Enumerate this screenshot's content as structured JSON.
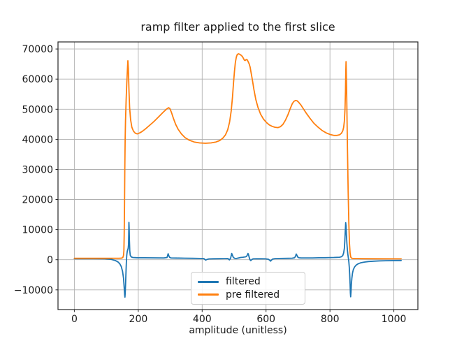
{
  "chart_data": {
    "type": "line",
    "title": "ramp filter applied to the first slice",
    "xlabel": "amplitude (unitless)",
    "ylabel": "",
    "xlim": [
      -51.2,
      1075.2
    ],
    "ylim": [
      -16540,
      72340
    ],
    "xticks": [
      0,
      200,
      400,
      600,
      800,
      1000
    ],
    "yticks": [
      -10000,
      0,
      10000,
      20000,
      30000,
      40000,
      50000,
      60000,
      70000
    ],
    "grid": true,
    "legend_position": "lower center",
    "series": [
      {
        "name": "filtered",
        "color": "#1f77b4",
        "points": [
          [
            0,
            350
          ],
          [
            60,
            350
          ],
          [
            95,
            330
          ],
          [
            115,
            150
          ],
          [
            128,
            -250
          ],
          [
            136,
            -700
          ],
          [
            142,
            -1300
          ],
          [
            147,
            -2300
          ],
          [
            151,
            -3900
          ],
          [
            154,
            -6200
          ],
          [
            156,
            -9200
          ],
          [
            157.5,
            -11700
          ],
          [
            158.3,
            -12400
          ],
          [
            159.2,
            -11000
          ],
          [
            160.5,
            -7500
          ],
          [
            161.8,
            -3500
          ],
          [
            163,
            -500
          ],
          [
            164,
            1500
          ],
          [
            165.5,
            2800
          ],
          [
            167,
            3400
          ],
          [
            168.5,
            3800
          ],
          [
            169.5,
            5000
          ],
          [
            170.2,
            8500
          ],
          [
            170.8,
            12400
          ],
          [
            171.5,
            10500
          ],
          [
            172.3,
            6500
          ],
          [
            173.5,
            3000
          ],
          [
            175,
            1500
          ],
          [
            178,
            950
          ],
          [
            183,
            750
          ],
          [
            195,
            680
          ],
          [
            220,
            650
          ],
          [
            250,
            630
          ],
          [
            280,
            620
          ],
          [
            290,
            750
          ],
          [
            293.5,
            2000
          ],
          [
            295.5,
            1400
          ],
          [
            298,
            800
          ],
          [
            303,
            600
          ],
          [
            320,
            560
          ],
          [
            345,
            520
          ],
          [
            370,
            480
          ],
          [
            395,
            430
          ],
          [
            406,
            350
          ],
          [
            411,
            -100
          ],
          [
            415,
            100
          ],
          [
            421,
            280
          ],
          [
            435,
            330
          ],
          [
            455,
            360
          ],
          [
            470,
            380
          ],
          [
            481,
            390
          ],
          [
            485,
            -50
          ],
          [
            489,
            500
          ],
          [
            492.5,
            2100
          ],
          [
            494.5,
            1600
          ],
          [
            497,
            900
          ],
          [
            501,
            500
          ],
          [
            506,
            400
          ],
          [
            512,
            550
          ],
          [
            520,
            750
          ],
          [
            528,
            850
          ],
          [
            535,
            950
          ],
          [
            539,
            1100
          ],
          [
            542,
            1700
          ],
          [
            543.5,
            2100
          ],
          [
            545,
            1700
          ],
          [
            547,
            900
          ],
          [
            549.5,
            100
          ],
          [
            551.5,
            -250
          ],
          [
            553.5,
            -150
          ],
          [
            556,
            150
          ],
          [
            560,
            300
          ],
          [
            570,
            330
          ],
          [
            585,
            320
          ],
          [
            598,
            300
          ],
          [
            607,
            200
          ],
          [
            611,
            -100
          ],
          [
            614,
            -450
          ],
          [
            617,
            -100
          ],
          [
            621,
            250
          ],
          [
            628,
            380
          ],
          [
            640,
            420
          ],
          [
            655,
            450
          ],
          [
            670,
            480
          ],
          [
            682,
            520
          ],
          [
            689,
            650
          ],
          [
            692,
            1100
          ],
          [
            694.5,
            1900
          ],
          [
            696.5,
            1500
          ],
          [
            699,
            900
          ],
          [
            703,
            650
          ],
          [
            710,
            600
          ],
          [
            725,
            600
          ],
          [
            745,
            620
          ],
          [
            765,
            650
          ],
          [
            785,
            690
          ],
          [
            800,
            720
          ],
          [
            812,
            750
          ],
          [
            822,
            790
          ],
          [
            830,
            850
          ],
          [
            836,
            1000
          ],
          [
            840,
            1400
          ],
          [
            843,
            2300
          ],
          [
            845,
            3800
          ],
          [
            846.5,
            6000
          ],
          [
            848,
            9500
          ],
          [
            849.3,
            12300
          ],
          [
            850.3,
            11200
          ],
          [
            851.5,
            8500
          ],
          [
            853,
            5500
          ],
          [
            854.5,
            3300
          ],
          [
            856,
            1800
          ],
          [
            857.5,
            600
          ],
          [
            859,
            -700
          ],
          [
            860.5,
            -2400
          ],
          [
            861.8,
            -4800
          ],
          [
            863,
            -8000
          ],
          [
            864,
            -11000
          ],
          [
            864.8,
            -12300
          ],
          [
            865.8,
            -10800
          ],
          [
            867,
            -8200
          ],
          [
            868.5,
            -6200
          ],
          [
            870.5,
            -4500
          ],
          [
            873,
            -3300
          ],
          [
            877,
            -2400
          ],
          [
            882,
            -1750
          ],
          [
            889,
            -1300
          ],
          [
            897,
            -1000
          ],
          [
            907,
            -780
          ],
          [
            920,
            -600
          ],
          [
            936,
            -480
          ],
          [
            955,
            -390
          ],
          [
            975,
            -330
          ],
          [
            1000,
            -280
          ],
          [
            1023,
            -260
          ]
        ]
      },
      {
        "name": "pre filtered",
        "color": "#ff7f0e",
        "points": [
          [
            0,
            500
          ],
          [
            60,
            500
          ],
          [
            120,
            500
          ],
          [
            140,
            500
          ],
          [
            148,
            550
          ],
          [
            152,
            800
          ],
          [
            154,
            1500
          ],
          [
            155,
            3000
          ],
          [
            156,
            8000
          ],
          [
            157,
            18000
          ],
          [
            158,
            30000
          ],
          [
            159,
            40000
          ],
          [
            160,
            46000
          ],
          [
            162,
            53000
          ],
          [
            164,
            58500
          ],
          [
            166,
            63000
          ],
          [
            167.5,
            66100
          ],
          [
            169,
            63500
          ],
          [
            171,
            56000
          ],
          [
            173,
            50500
          ],
          [
            176,
            46500
          ],
          [
            180,
            44000
          ],
          [
            185,
            42700
          ],
          [
            191,
            42000
          ],
          [
            197,
            41800
          ],
          [
            204,
            42100
          ],
          [
            212,
            42600
          ],
          [
            222,
            43400
          ],
          [
            235,
            44600
          ],
          [
            250,
            46000
          ],
          [
            265,
            47600
          ],
          [
            278,
            49000
          ],
          [
            288,
            50000
          ],
          [
            295,
            50500
          ],
          [
            299,
            50200
          ],
          [
            304,
            48900
          ],
          [
            310,
            47000
          ],
          [
            317,
            45000
          ],
          [
            325,
            43300
          ],
          [
            335,
            41800
          ],
          [
            347,
            40500
          ],
          [
            360,
            39700
          ],
          [
            375,
            39100
          ],
          [
            392,
            38800
          ],
          [
            410,
            38700
          ],
          [
            428,
            38800
          ],
          [
            443,
            39100
          ],
          [
            455,
            39600
          ],
          [
            465,
            40400
          ],
          [
            473,
            41500
          ],
          [
            480,
            43200
          ],
          [
            486,
            45800
          ],
          [
            491,
            49500
          ],
          [
            495,
            54000
          ],
          [
            498,
            58500
          ],
          [
            501,
            62500
          ],
          [
            504,
            65500
          ],
          [
            507,
            67300
          ],
          [
            510,
            68200
          ],
          [
            514,
            68400
          ],
          [
            518,
            68200
          ],
          [
            522,
            67900
          ],
          [
            526,
            67500
          ],
          [
            529,
            66900
          ],
          [
            532,
            66300
          ],
          [
            535,
            66200
          ],
          [
            538,
            66500
          ],
          [
            541,
            66400
          ],
          [
            544,
            65800
          ],
          [
            547,
            65100
          ],
          [
            550,
            64000
          ],
          [
            553,
            62300
          ],
          [
            557,
            59800
          ],
          [
            562,
            56500
          ],
          [
            568,
            53200
          ],
          [
            575,
            50500
          ],
          [
            583,
            48300
          ],
          [
            592,
            46700
          ],
          [
            601,
            45600
          ],
          [
            610,
            44800
          ],
          [
            619,
            44300
          ],
          [
            628,
            44000
          ],
          [
            637,
            43900
          ],
          [
            645,
            44200
          ],
          [
            653,
            45000
          ],
          [
            661,
            46400
          ],
          [
            669,
            48300
          ],
          [
            676,
            50300
          ],
          [
            682,
            51800
          ],
          [
            687,
            52600
          ],
          [
            692,
            52900
          ],
          [
            697,
            52800
          ],
          [
            702,
            52300
          ],
          [
            709,
            51400
          ],
          [
            717,
            50100
          ],
          [
            727,
            48500
          ],
          [
            738,
            46900
          ],
          [
            750,
            45300
          ],
          [
            763,
            44000
          ],
          [
            776,
            42900
          ],
          [
            789,
            42100
          ],
          [
            801,
            41600
          ],
          [
            812,
            41300
          ],
          [
            822,
            41300
          ],
          [
            830,
            41500
          ],
          [
            836,
            42000
          ],
          [
            840,
            42800
          ],
          [
            843,
            44000
          ],
          [
            845,
            46000
          ],
          [
            847,
            50000
          ],
          [
            848.5,
            56000
          ],
          [
            849.5,
            62000
          ],
          [
            850.3,
            65800
          ],
          [
            851,
            63000
          ],
          [
            852,
            57000
          ],
          [
            853.5,
            47000
          ],
          [
            855,
            36000
          ],
          [
            857,
            23000
          ],
          [
            859,
            12000
          ],
          [
            861,
            5500
          ],
          [
            863,
            2200
          ],
          [
            865,
            900
          ],
          [
            868,
            500
          ],
          [
            875,
            400
          ],
          [
            900,
            350
          ],
          [
            950,
            320
          ],
          [
            1023,
            300
          ]
        ]
      }
    ]
  },
  "colors": {
    "background": "#ffffff",
    "grid": "#b0b0b0",
    "spine": "#262626",
    "text": "#1a1a1a",
    "legend_border": "#cccccc"
  }
}
